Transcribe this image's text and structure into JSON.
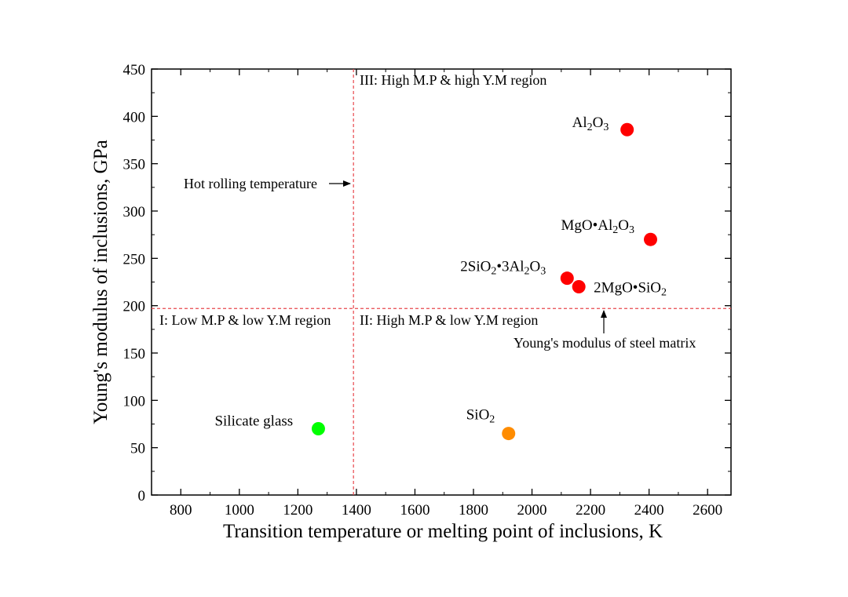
{
  "chart_data": {
    "type": "scatter",
    "xlabel": "Transition temperature or melting point of inclusions, K",
    "ylabel": "Young's modulus of inclusions, GPa",
    "xlim": [
      700,
      2680
    ],
    "ylim": [
      0,
      450
    ],
    "x_ticks": [
      "800",
      "1000",
      "1200",
      "1400",
      "1600",
      "1800",
      "2000",
      "2200",
      "2400",
      "2600"
    ],
    "y_ticks": [
      "0",
      "50",
      "100",
      "150",
      "200",
      "250",
      "300",
      "350",
      "400",
      "450"
    ],
    "grid": false,
    "points": [
      {
        "label": "Al₂O₃",
        "x": 2325,
        "y": 386,
        "color": "#ff0000"
      },
      {
        "label": "MgO•Al₂O₃",
        "x": 2405,
        "y": 270,
        "color": "#ff0000"
      },
      {
        "label": "2SiO₂•3Al₂O₃",
        "x": 2120,
        "y": 229,
        "color": "#ff0000"
      },
      {
        "label": "2MgO•SiO₂",
        "x": 2160,
        "y": 220,
        "color": "#ff0000"
      },
      {
        "label": "Silicate glass",
        "x": 1270,
        "y": 70,
        "color": "#00ff00"
      },
      {
        "label": "SiO₂",
        "x": 1920,
        "y": 65,
        "color": "#ff8c00"
      }
    ],
    "reference_lines": {
      "vertical": {
        "x": 1390,
        "label": "Hot rolling temperature",
        "color": "#e8474c"
      },
      "horizontal": {
        "y": 197,
        "label": "Young's modulus of steel matrix",
        "color": "#e8474c"
      }
    },
    "regions": [
      "I: Low M.P & low Y.M region",
      "II: High M.P & low Y.M region",
      "III: High M.P & high Y.M region"
    ]
  }
}
